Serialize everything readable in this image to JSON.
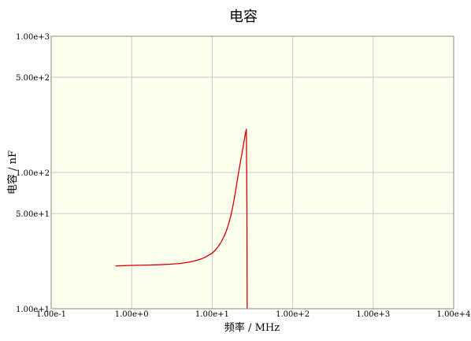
{
  "chart_data": {
    "type": "line",
    "title": "电容",
    "xlabel": "频率 / MHz",
    "ylabel": "电容 / nF",
    "xscale": "log",
    "yscale": "log",
    "xlim": [
      0.1,
      10000
    ],
    "ylim": [
      10,
      1000
    ],
    "grid": true,
    "plot_background": "#fffff0",
    "grid_color": "#c8c8c8",
    "line_color": "#d40000",
    "x_ticks": [
      {
        "value": 0.1,
        "label": "1.00e-1"
      },
      {
        "value": 1,
        "label": "1.00e+0"
      },
      {
        "value": 10,
        "label": "1.00e+1"
      },
      {
        "value": 100,
        "label": "1.00e+2"
      },
      {
        "value": 1000,
        "label": "1.00e+3"
      },
      {
        "value": 10000,
        "label": "1.00e+4"
      }
    ],
    "y_ticks": [
      {
        "value": 10,
        "label": "1.00e+1"
      },
      {
        "value": 50,
        "label": "5.00e+1"
      },
      {
        "value": 100,
        "label": "1.00e+2"
      },
      {
        "value": 500,
        "label": "5.00e+2"
      },
      {
        "value": 1000,
        "label": "1.00e+3"
      }
    ],
    "series": [
      {
        "x": [
          0.63,
          0.8,
          1.0,
          1.5,
          2.0,
          3.0,
          4.0,
          5.0,
          6.0,
          7.0,
          8.0,
          10.0,
          11.0,
          12.0,
          13.0,
          14.0,
          15.0,
          16.0,
          17.0,
          18.0,
          19.0,
          20.0,
          21.0,
          22.0,
          23.0,
          24.0,
          25.0,
          26.0,
          26.6,
          27.0,
          27.2
        ],
        "y": [
          20.6,
          20.7,
          20.8,
          20.9,
          21.0,
          21.2,
          21.5,
          21.9,
          22.4,
          23.0,
          23.7,
          25.6,
          27.0,
          28.8,
          31.0,
          33.8,
          37.3,
          42.0,
          48.0,
          56.0,
          66.5,
          80.0,
          95.0,
          112,
          130,
          150,
          172,
          196,
          208,
          60,
          10
        ]
      }
    ]
  }
}
